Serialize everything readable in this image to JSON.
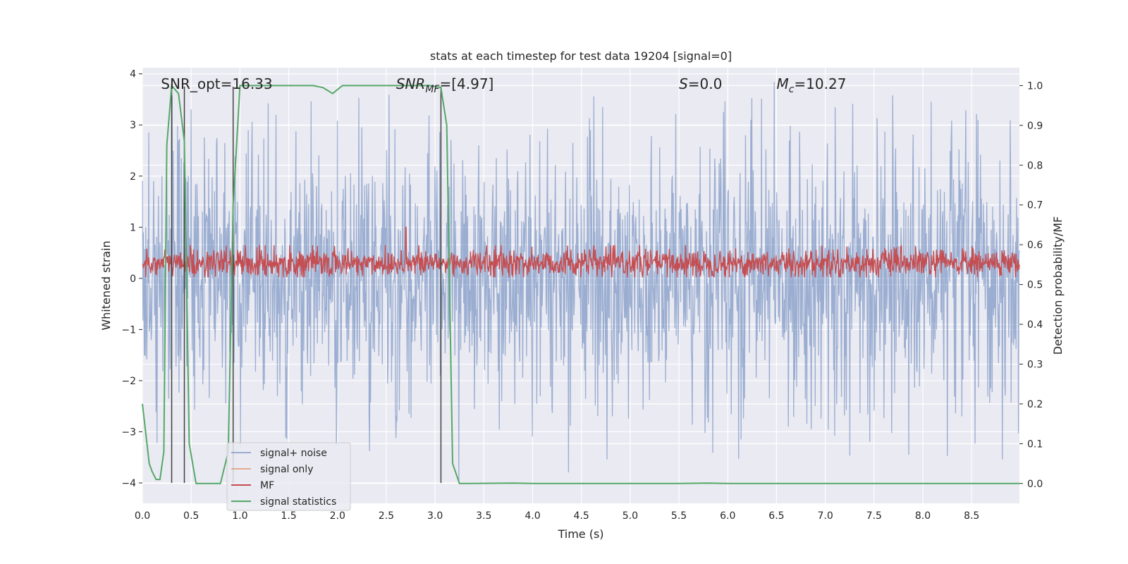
{
  "chart_data": {
    "type": "line",
    "title": "stats at each timestep for test data 19204 [signal=0]",
    "xlabel": "Time (s)",
    "ylabel": "Whitened strain",
    "ylabel_right": "Detection probability/MF",
    "xlim": [
      0,
      8.99
    ],
    "ylim": [
      -4.4,
      4.12
    ],
    "ylim_right": [
      -0.05,
      1.045
    ],
    "x_ticks": [
      0.0,
      0.5,
      1.0,
      1.5,
      2.0,
      2.5,
      3.0,
      3.5,
      4.0,
      4.5,
      5.0,
      5.5,
      6.0,
      6.5,
      7.0,
      7.5,
      8.0,
      8.5
    ],
    "x_tick_labels": [
      "0.0",
      "0.5",
      "1.0",
      "1.5",
      "2.0",
      "2.5",
      "3.0",
      "3.5",
      "4.0",
      "4.5",
      "5.0",
      "5.5",
      "6.0",
      "6.5",
      "7.0",
      "7.5",
      "8.0",
      "8.5"
    ],
    "y_ticks": [
      -4,
      -3,
      -2,
      -1,
      0,
      1,
      2,
      3,
      4
    ],
    "y_tick_labels": [
      "−4",
      "−3",
      "−2",
      "−1",
      "0",
      "1",
      "2",
      "3",
      "4"
    ],
    "y_right_ticks": [
      0.0,
      0.1,
      0.2,
      0.3,
      0.4,
      0.5,
      0.6,
      0.7,
      0.8,
      0.9,
      1.0
    ],
    "y_right_tick_labels": [
      "0.0",
      "0.1",
      "0.2",
      "0.3",
      "0.4",
      "0.5",
      "0.6",
      "0.7",
      "0.8",
      "0.9",
      "1.0"
    ],
    "annotations": [
      {
        "text": "SNR_opt=16.33",
        "x": 0.19,
        "y": 3.8
      },
      {
        "text": "SNR_MF=[4.97]",
        "x": 2.6,
        "y": 3.8,
        "main": "SNR",
        "sub": "MF",
        "rest": "=[4.97]"
      },
      {
        "text": "S=0.0",
        "x": 5.5,
        "y": 3.8,
        "main": "S",
        "rest": "=0.0"
      },
      {
        "text": "M_c=10.27",
        "x": 6.5,
        "y": 3.8,
        "main": "M",
        "sub": "c",
        "rest": "=10.27"
      }
    ],
    "vertical_lines": [
      0.3,
      0.43,
      0.93,
      3.06
    ],
    "vertical_lines_range": [
      -4.0,
      3.75
    ],
    "series": [
      {
        "name": "signal+ noise",
        "color": "#4c72b0",
        "axis": "left",
        "summary": {
          "points": 1800,
          "band_low": -2.4,
          "band_high": 2.4,
          "max": 3.9,
          "min": -4.0
        }
      },
      {
        "name": "signal only",
        "color": "#dd8452",
        "axis": "left",
        "values": []
      },
      {
        "name": "MF",
        "color": "#c44e52",
        "axis": "left",
        "summary": {
          "points": 1800,
          "low": 0.02,
          "high": 0.65,
          "peak_x": 2.7,
          "peak_value": 1.0
        }
      },
      {
        "name": "signal statistics",
        "color": "#55a868",
        "axis": "right",
        "x": [
          0.0,
          0.07,
          0.1,
          0.14,
          0.18,
          0.22,
          0.25,
          0.3,
          0.37,
          0.43,
          0.48,
          0.55,
          0.6,
          0.8,
          0.88,
          0.93,
          1.0,
          1.05,
          1.75,
          1.85,
          1.95,
          2.05,
          2.95,
          3.06,
          3.12,
          3.18,
          3.25,
          3.35,
          3.8,
          4.0,
          5.5,
          5.8,
          6.0,
          7.0,
          8.99
        ],
        "y": [
          0.2,
          0.05,
          0.03,
          0.01,
          0.01,
          0.08,
          0.85,
          1.0,
          0.98,
          0.86,
          0.1,
          0.0,
          0.0,
          0.0,
          0.08,
          0.7,
          1.0,
          1.0,
          1.0,
          0.995,
          0.98,
          1.0,
          1.0,
          0.995,
          0.9,
          0.05,
          0.0,
          0.0,
          0.001,
          0.0,
          0.0,
          0.001,
          0.0,
          0.0,
          0.0
        ]
      }
    ],
    "legend": {
      "position": "lower-left",
      "entries": [
        "signal+ noise",
        "signal only",
        "MF",
        "signal statistics"
      ]
    },
    "grid": true,
    "colors": {
      "background": "#eaeaf2",
      "grid": "#ffffff",
      "vline": "#404040"
    }
  }
}
